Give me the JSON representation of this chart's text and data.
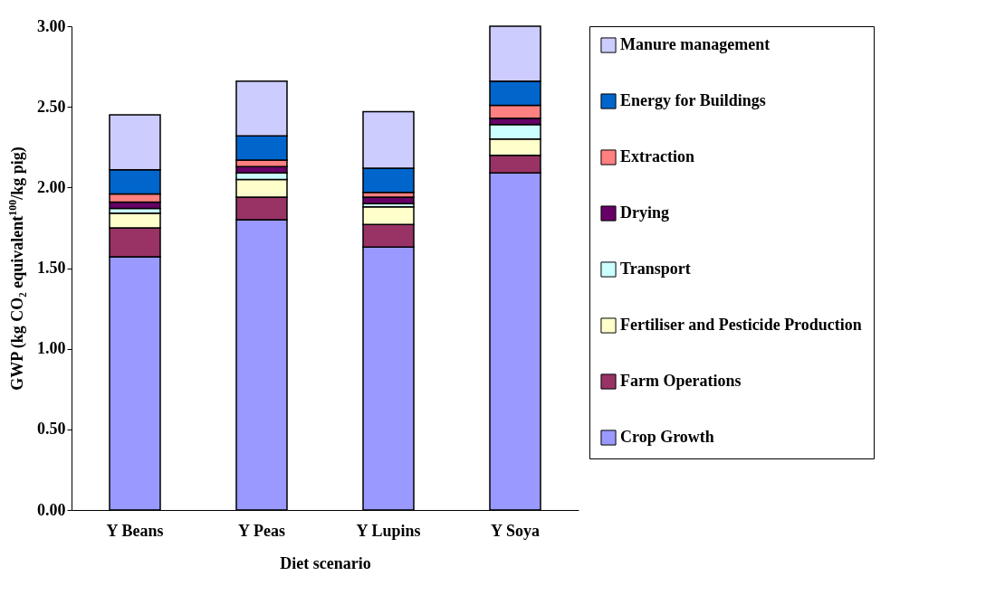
{
  "chart_data": {
    "type": "bar",
    "stacked": true,
    "xlabel": "Diet scenario",
    "ylabel": "GWP (kg CO₂ equivalent$^{100}$/kg pig)",
    "categories": [
      "Y Beans",
      "Y Peas",
      "Y Lupins",
      "Y Soya"
    ],
    "series": [
      {
        "name": "Crop Growth",
        "color": "#9999ff",
        "values": [
          1.57,
          1.8,
          1.63,
          2.09
        ]
      },
      {
        "name": "Farm Operations",
        "color": "#993366",
        "values": [
          0.18,
          0.14,
          0.14,
          0.11
        ]
      },
      {
        "name": "Fertiliser and Pesticide Production",
        "color": "#ffffcc",
        "values": [
          0.09,
          0.11,
          0.11,
          0.1
        ]
      },
      {
        "name": "Transport",
        "color": "#ccffff",
        "values": [
          0.03,
          0.04,
          0.02,
          0.09
        ]
      },
      {
        "name": "Drying",
        "color": "#660066",
        "values": [
          0.04,
          0.04,
          0.04,
          0.04
        ]
      },
      {
        "name": "Extraction",
        "color": "#ff8080",
        "values": [
          0.05,
          0.04,
          0.03,
          0.08
        ]
      },
      {
        "name": "Energy for Buildings",
        "color": "#0066cc",
        "values": [
          0.15,
          0.15,
          0.15,
          0.15
        ]
      },
      {
        "name": "Manure management",
        "color": "#ccccff",
        "values": [
          0.34,
          0.34,
          0.35,
          0.34
        ]
      }
    ],
    "ylim": [
      0,
      3
    ],
    "yticks": [
      {
        "value": 0,
        "label": "0.00"
      },
      {
        "value": 0.5,
        "label": "0.50"
      },
      {
        "value": 1,
        "label": "1.00"
      },
      {
        "value": 1.5,
        "label": "1.50"
      },
      {
        "value": 2,
        "label": "2.00"
      },
      {
        "value": 2.5,
        "label": "2.50"
      },
      {
        "value": 3,
        "label": "3.00"
      }
    ],
    "grid": false,
    "legend": "right"
  }
}
